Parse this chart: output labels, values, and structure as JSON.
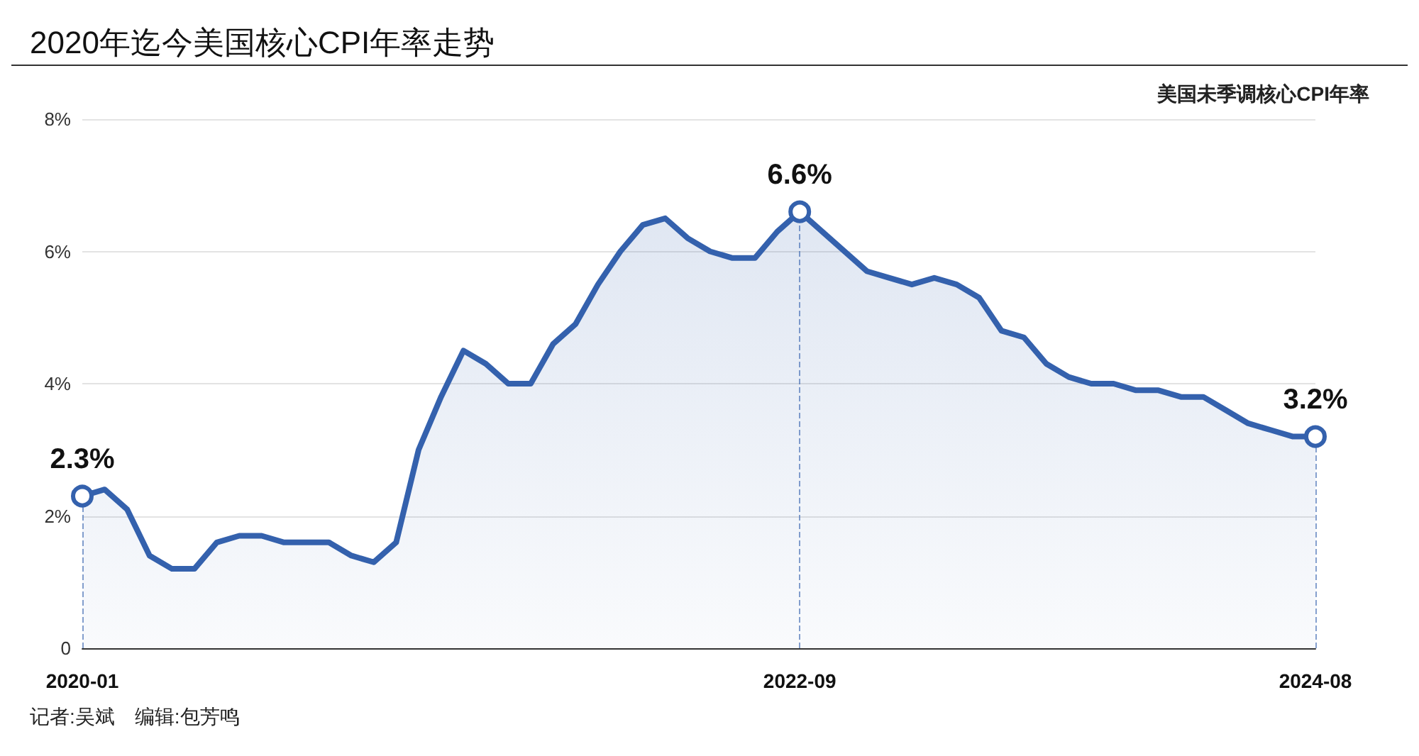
{
  "chart_data": {
    "type": "area",
    "title": "2020年迄今美国核心CPI年率走势",
    "subtitle": "美国未季调核心CPI年率",
    "categories": [
      "2020-01",
      null,
      null,
      null,
      null,
      null,
      null,
      null,
      null,
      null,
      null,
      null,
      null,
      null,
      null,
      null,
      null,
      null,
      null,
      null,
      null,
      null,
      null,
      null,
      null,
      null,
      null,
      null,
      null,
      null,
      null,
      null,
      "2022-09",
      null,
      null,
      null,
      null,
      null,
      null,
      null,
      null,
      null,
      null,
      null,
      null,
      null,
      null,
      null,
      null,
      null,
      null,
      null,
      null,
      null,
      null,
      "2024-08"
    ],
    "series": [
      {
        "color": "#3461ad",
        "values": [
          2.3,
          2.4,
          2.1,
          1.4,
          1.2,
          1.2,
          1.6,
          1.7,
          1.7,
          1.6,
          1.6,
          1.6,
          1.4,
          1.3,
          1.6,
          3.0,
          3.8,
          4.5,
          4.3,
          4.0,
          4.0,
          4.6,
          4.9,
          5.5,
          6.0,
          6.4,
          6.5,
          6.2,
          6.0,
          5.9,
          5.9,
          6.3,
          6.6,
          6.3,
          6.0,
          5.7,
          5.6,
          5.5,
          5.6,
          5.5,
          5.3,
          4.8,
          4.7,
          4.3,
          4.1,
          4.0,
          4.0,
          3.9,
          3.9,
          3.8,
          3.8,
          3.6,
          3.4,
          3.3,
          3.2,
          3.2
        ]
      }
    ],
    "ylim": [
      0,
      8
    ],
    "yticks": [
      0,
      {
        "value": 2,
        "label": "2%"
      },
      {
        "value": 4,
        "label": "4%"
      },
      {
        "value": 6,
        "label": "6%"
      },
      {
        "value": 8,
        "label": "8%"
      }
    ],
    "grid": "y",
    "marker": "none",
    "line_style": "solid",
    "annotations": [
      {
        "text": "2.3%",
        "x": "2020-01",
        "y": 2.3
      },
      {
        "text": "6.6%",
        "x": "2022-09",
        "y": 6.6
      },
      {
        "text": "3.2%",
        "x": "2024-08",
        "y": 3.2
      },
      "记者:吴斌　编辑:包芳鸣"
    ]
  }
}
